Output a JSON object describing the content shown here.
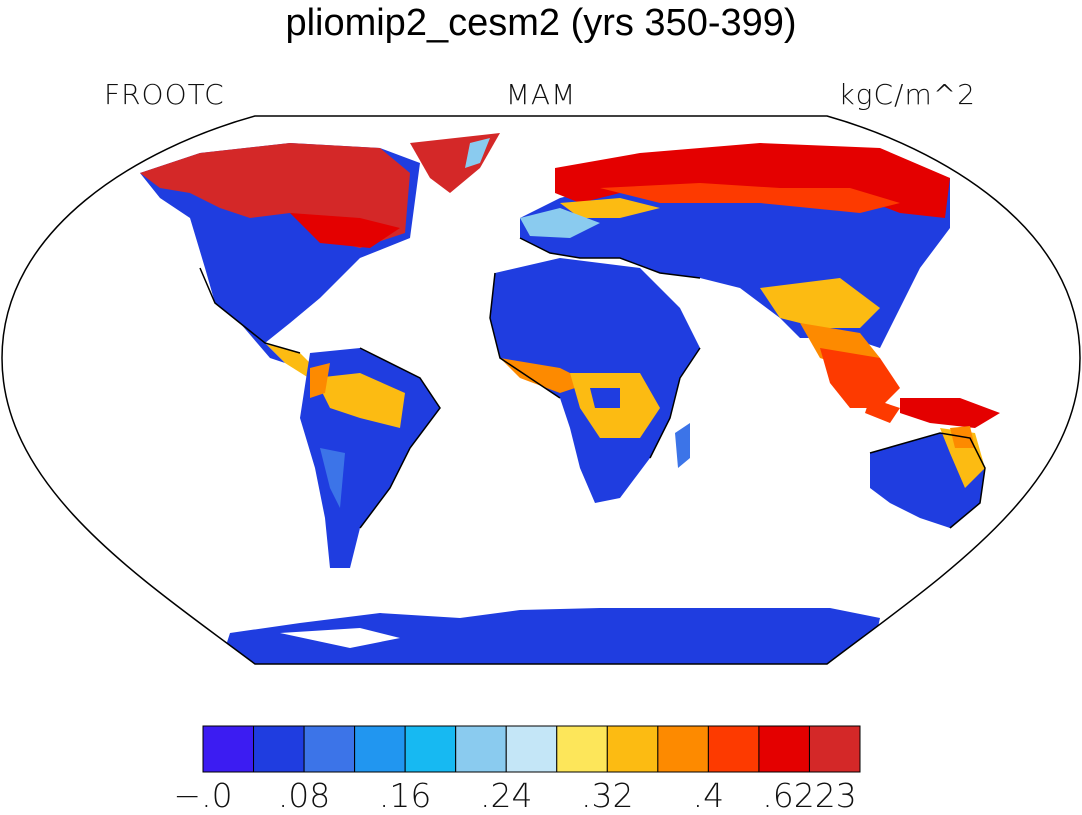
{
  "title": "pliomip2_cesm2 (yrs 350-399)",
  "variable": "FROOTC",
  "season": "MAM",
  "units": "kgC/m^2",
  "colorbar": {
    "colors": [
      "#3c1cf2",
      "#1f3de0",
      "#3c74e8",
      "#2196f0",
      "#17b9f2",
      "#8acbef",
      "#c4e6f7",
      "#fde65a",
      "#fcbb12",
      "#fd8a00",
      "#fd3a00",
      "#e40000",
      "#d42828"
    ],
    "tick_labels": [
      "−.0",
      ".08",
      ".16",
      ".24",
      ".32",
      ".4",
      ".6223"
    ]
  },
  "chart_data": {
    "type": "heatmap",
    "title": "pliomip2_cesm2 (yrs 350-399)",
    "variable": "FROOTC",
    "season": "MAM",
    "units": "kgC/m^2",
    "projection": "Robinson",
    "levels": [
      0,
      0.04,
      0.08,
      0.12,
      0.16,
      0.2,
      0.24,
      0.28,
      0.32,
      0.36,
      0.4,
      0.44,
      0.6223
    ]
  }
}
